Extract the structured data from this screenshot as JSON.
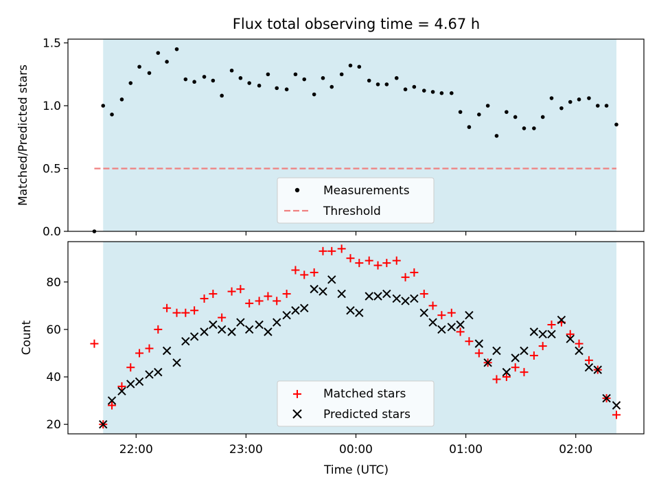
{
  "title": "Flux total observing time = 4.67 h",
  "chart_data": [
    {
      "type": "scatter",
      "ylabel": "Matched/Predicted stars",
      "xlabel": "",
      "xlim": [
        -2.62,
        2.62
      ],
      "ylim": [
        0,
        1.53
      ],
      "yticks": [
        0.0,
        0.5,
        1.0,
        1.5
      ],
      "ytick_labels": [
        "0.0",
        "0.5",
        "1.0",
        "1.5"
      ],
      "shaded_span": [
        -2.3,
        2.37
      ],
      "shade_color": "#add8e6",
      "legend": [
        "Measurements",
        "Threshold"
      ],
      "legend_position": "lower center",
      "threshold": {
        "name": "Threshold",
        "y": 0.5,
        "x_range": [
          -2.38,
          2.37
        ],
        "color": "#f08080",
        "style": "dashed"
      },
      "series": [
        {
          "name": "Measurements",
          "marker": "dot",
          "color": "#000000",
          "x": [
            -2.38,
            -2.3,
            -2.22,
            -2.13,
            -2.05,
            -1.97,
            -1.88,
            -1.8,
            -1.72,
            -1.63,
            -1.55,
            -1.47,
            -1.38,
            -1.3,
            -1.22,
            -1.13,
            -1.05,
            -0.97,
            -0.88,
            -0.8,
            -0.72,
            -0.63,
            -0.55,
            -0.47,
            -0.38,
            -0.3,
            -0.22,
            -0.13,
            -0.05,
            0.03,
            0.12,
            0.2,
            0.28,
            0.37,
            0.45,
            0.53,
            0.62,
            0.7,
            0.78,
            0.87,
            0.95,
            1.03,
            1.12,
            1.2,
            1.28,
            1.37,
            1.45,
            1.53,
            1.62,
            1.7,
            1.78,
            1.87,
            1.95,
            2.03,
            2.12,
            2.2,
            2.28,
            2.37
          ],
          "y": [
            0.0,
            1.0,
            0.93,
            1.05,
            1.18,
            1.31,
            1.26,
            1.42,
            1.35,
            1.45,
            1.21,
            1.19,
            1.23,
            1.2,
            1.08,
            1.28,
            1.22,
            1.18,
            1.16,
            1.25,
            1.14,
            1.13,
            1.25,
            1.21,
            1.09,
            1.22,
            1.15,
            1.25,
            1.32,
            1.31,
            1.2,
            1.17,
            1.17,
            1.22,
            1.13,
            1.15,
            1.12,
            1.11,
            1.1,
            1.1,
            0.95,
            0.83,
            0.93,
            1.0,
            0.76,
            0.95,
            0.91,
            0.82,
            0.82,
            0.91,
            1.06,
            0.98,
            1.03,
            1.05,
            1.06,
            1.0,
            1.0,
            0.85
          ]
        }
      ]
    },
    {
      "type": "scatter",
      "ylabel": "Count",
      "xlabel": "Time (UTC)",
      "xlim": [
        -2.62,
        2.62
      ],
      "ylim": [
        16,
        97
      ],
      "yticks": [
        20,
        40,
        60,
        80
      ],
      "ytick_labels": [
        "20",
        "40",
        "60",
        "80"
      ],
      "xticks": [
        -2,
        -1,
        0,
        1,
        2
      ],
      "xtick_labels": [
        "22:00",
        "23:00",
        "00:00",
        "01:00",
        "02:00"
      ],
      "shaded_span": [
        -2.3,
        2.37
      ],
      "shade_color": "#add8e6",
      "legend": [
        "Matched stars",
        "Predicted stars"
      ],
      "legend_position": "lower center",
      "series": [
        {
          "name": "Matched stars",
          "marker": "plus",
          "color": "#ff0000",
          "x": [
            -2.38,
            -2.3,
            -2.22,
            -2.13,
            -2.05,
            -1.97,
            -1.88,
            -1.8,
            -1.72,
            -1.63,
            -1.55,
            -1.47,
            -1.38,
            -1.3,
            -1.22,
            -1.13,
            -1.05,
            -0.97,
            -0.88,
            -0.8,
            -0.72,
            -0.63,
            -0.55,
            -0.47,
            -0.38,
            -0.3,
            -0.22,
            -0.13,
            -0.05,
            0.03,
            0.12,
            0.2,
            0.28,
            0.37,
            0.45,
            0.53,
            0.62,
            0.7,
            0.78,
            0.87,
            0.95,
            1.03,
            1.12,
            1.2,
            1.28,
            1.37,
            1.45,
            1.53,
            1.62,
            1.7,
            1.78,
            1.87,
            1.95,
            2.03,
            2.12,
            2.2,
            2.28,
            2.37
          ],
          "y": [
            54,
            20,
            28,
            36,
            44,
            50,
            52,
            60,
            69,
            67,
            67,
            68,
            73,
            75,
            65,
            76,
            77,
            71,
            72,
            74,
            72,
            75,
            85,
            83,
            84,
            93,
            93,
            94,
            90,
            88,
            89,
            87,
            88,
            89,
            82,
            84,
            75,
            70,
            66,
            67,
            59,
            55,
            50,
            46,
            39,
            40,
            44,
            42,
            49,
            53,
            62,
            63,
            58,
            54,
            47,
            43,
            31,
            24
          ]
        },
        {
          "name": "Predicted stars",
          "marker": "x",
          "color": "#000000",
          "x": [
            -2.3,
            -2.22,
            -2.13,
            -2.05,
            -1.97,
            -1.88,
            -1.8,
            -1.72,
            -1.63,
            -1.55,
            -1.47,
            -1.38,
            -1.3,
            -1.22,
            -1.13,
            -1.05,
            -0.97,
            -0.88,
            -0.8,
            -0.72,
            -0.63,
            -0.55,
            -0.47,
            -0.38,
            -0.3,
            -0.22,
            -0.13,
            -0.05,
            0.03,
            0.12,
            0.2,
            0.28,
            0.37,
            0.45,
            0.53,
            0.62,
            0.7,
            0.78,
            0.87,
            0.95,
            1.03,
            1.12,
            1.2,
            1.28,
            1.37,
            1.45,
            1.53,
            1.62,
            1.7,
            1.78,
            1.87,
            1.95,
            2.03,
            2.12,
            2.2,
            2.28,
            2.37
          ],
          "y": [
            20,
            30,
            34,
            37,
            38,
            41,
            42,
            51,
            46,
            55,
            57,
            59,
            62,
            60,
            59,
            63,
            60,
            62,
            59,
            63,
            66,
            68,
            69,
            77,
            76,
            81,
            75,
            68,
            67,
            74,
            74,
            75,
            73,
            72,
            73,
            67,
            63,
            60,
            61,
            62,
            66,
            54,
            46,
            51,
            42,
            48,
            51,
            59,
            58,
            58,
            64,
            56,
            51,
            44,
            43,
            31,
            28
          ]
        }
      ]
    }
  ]
}
